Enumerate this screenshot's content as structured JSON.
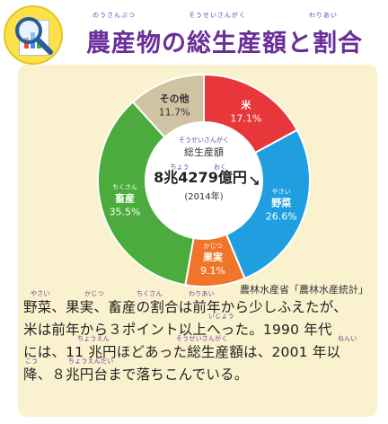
{
  "header": {
    "title": "農産物の総生産額と割合",
    "title_furigana": [
      "のうさんぶつ",
      "そうせいさんがく",
      "わりあい"
    ]
  },
  "chart_data": {
    "type": "pie",
    "style": "donut",
    "series": [
      {
        "name": "米",
        "value": 17.1,
        "label": "17.1%",
        "color": "#e8373a",
        "furigana": ""
      },
      {
        "name": "野菜",
        "value": 26.6,
        "label": "26.6%",
        "color": "#1f9fe0",
        "furigana": "やさい"
      },
      {
        "name": "果実",
        "value": 9.1,
        "label": "9.1%",
        "color": "#f0752a",
        "furigana": "かじつ"
      },
      {
        "name": "畜産",
        "value": 35.5,
        "label": "35.5%",
        "color": "#4bab3c",
        "furigana": "ちくさん"
      },
      {
        "name": "その他",
        "value": 11.7,
        "label": "11.7%",
        "color": "#cfc3a4",
        "furigana": ""
      }
    ],
    "center": {
      "title": "総生産額",
      "title_furigana": "そうせいさんがく",
      "value": "8兆4279億円",
      "value_furigana": [
        "ちょう",
        "おく"
      ],
      "year": "(2014年)"
    },
    "source": "農林水産省「農林水産統計」"
  },
  "body": {
    "lines": [
      "野菜、果実、畜産の割合は前年から少しふえたが、",
      "米は前年から３ポイント以上へった。1990 年代",
      "には、11 兆円ほどあった総生産額は、2001 年以",
      "降、８兆円台まで落ちこんでいる。"
    ],
    "furigana": [
      [
        "やさい",
        "かじつ",
        "ちくさん",
        "わりあい"
      ],
      [
        "いじょう"
      ],
      [
        "ちょうえん",
        "そうせいさんがく",
        "ねんい"
      ],
      [
        "こう",
        "ちょうえんだい"
      ]
    ]
  }
}
